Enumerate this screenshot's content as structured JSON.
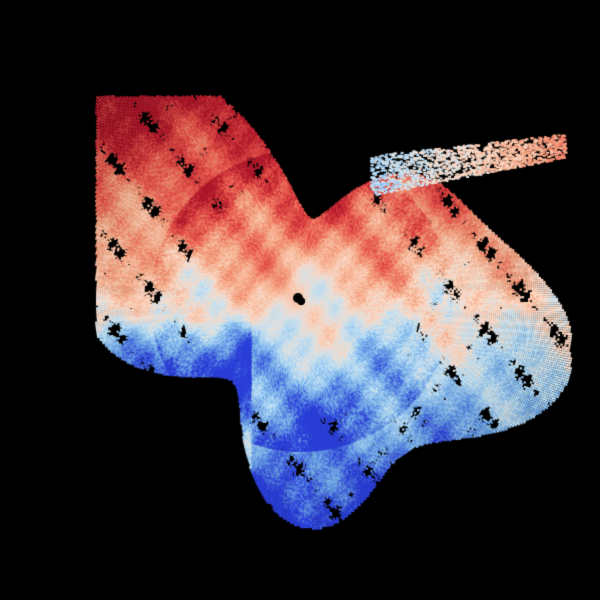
{
  "image": {
    "kind": "doppler-radar-velocity",
    "background_color": "#000000",
    "palette": {
      "strong_outbound": "#b2182b",
      "outbound": "#e8534a",
      "weak_outbound": "#f4a582",
      "near_zero": "#fddbc7",
      "weak_inbound": "#bfe3f7",
      "inbound": "#6fa8e8",
      "strong_inbound": "#2b3fd8"
    },
    "radar_site_marker_color": "#000000"
  }
}
